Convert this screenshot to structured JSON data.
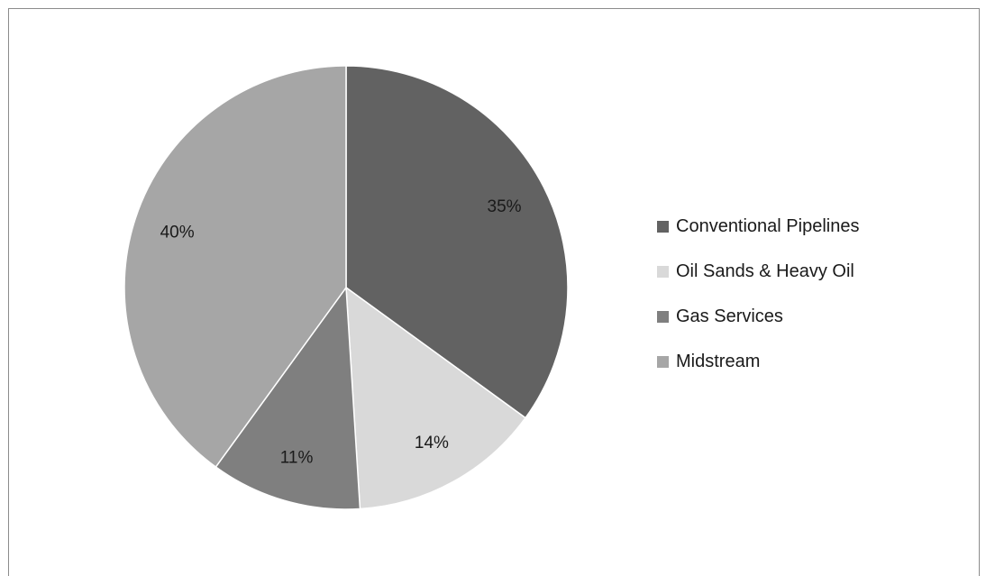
{
  "chart_data": {
    "type": "pie",
    "start_angle_deg": 0,
    "direction": "clockwise",
    "slices": [
      {
        "name": "Conventional Pipelines",
        "value": 35,
        "label": "35%",
        "color": "#626262"
      },
      {
        "name": "Oil Sands & Heavy Oil",
        "value": 14,
        "label": "14%",
        "color": "#d9d9d9"
      },
      {
        "name": "Gas Services",
        "value": 11,
        "label": "11%",
        "color": "#7f7f7f"
      },
      {
        "name": "Midstream",
        "value": 40,
        "label": "40%",
        "color": "#a6a6a6"
      }
    ],
    "legend_position": "right"
  }
}
